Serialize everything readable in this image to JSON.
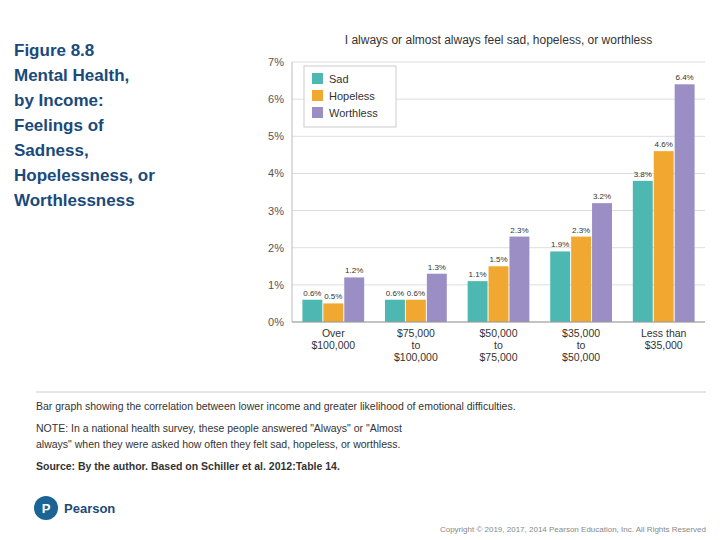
{
  "chart_data": {
    "type": "bar",
    "title": "I always or almost always feel sad, hopeless, or worthless",
    "categories": [
      "Over\n$100,000",
      "$75,000\nto\n$100,000",
      "$50,000\nto\n$75,000",
      "$35,000\nto\n$50,000",
      "Less than\n$35,000"
    ],
    "series": [
      {
        "name": "Sad",
        "color": "#4db8b2",
        "values": [
          0.6,
          0.6,
          1.1,
          1.9,
          3.8
        ],
        "value_labels": [
          "0.6%",
          "0.6%",
          "1.1%",
          "1.9%",
          "3.8%"
        ]
      },
      {
        "name": "Hopeless",
        "color": "#f0a830",
        "values": [
          0.5,
          0.6,
          1.5,
          2.3,
          4.6
        ],
        "value_labels": [
          "0.5%",
          "0.6%",
          "1.5%",
          "2.3%",
          "4.6%"
        ]
      },
      {
        "name": "Worthless",
        "color": "#9b8ec4",
        "values": [
          1.2,
          1.3,
          2.3,
          3.2,
          6.4
        ],
        "value_labels": [
          "1.2%",
          "1.3%",
          "2.3%",
          "3.2%",
          "6.4%"
        ]
      }
    ],
    "ylim": [
      0,
      7
    ],
    "yticks": [
      {
        "value": 0,
        "label": "0%"
      },
      {
        "value": 1,
        "label": "1%"
      },
      {
        "value": 2,
        "label": "2%"
      },
      {
        "value": 3,
        "label": "3%"
      },
      {
        "value": 4,
        "label": "4%"
      },
      {
        "value": 5,
        "label": "5%"
      },
      {
        "value": 6,
        "label": "6%"
      },
      {
        "value": 7,
        "label": "7%"
      }
    ],
    "grid": true,
    "legend": "upper left",
    "data_labels": true,
    "annotations": [
      "Figure 8.8\nMental Health,\nby Income:\nFeelings of\nSadness,\nHopelessness, or\nWorthlessness",
      "Bar graph showing the correlation between lower income and greater likelihood of emotional difficulties.",
      "NOTE: In a national health survey, these people answered \"Always\" or \"Almost",
      "always\" when they were asked how often they felt sad, hopeless, or worthless.",
      "Source: By the author. Based on Schiller et al. 2012:Table 14.",
      "P",
      "Pearson",
      "Copyright © 2019, 2017, 2014 Pearson Education, Inc. All Rights Reserved"
    ]
  }
}
